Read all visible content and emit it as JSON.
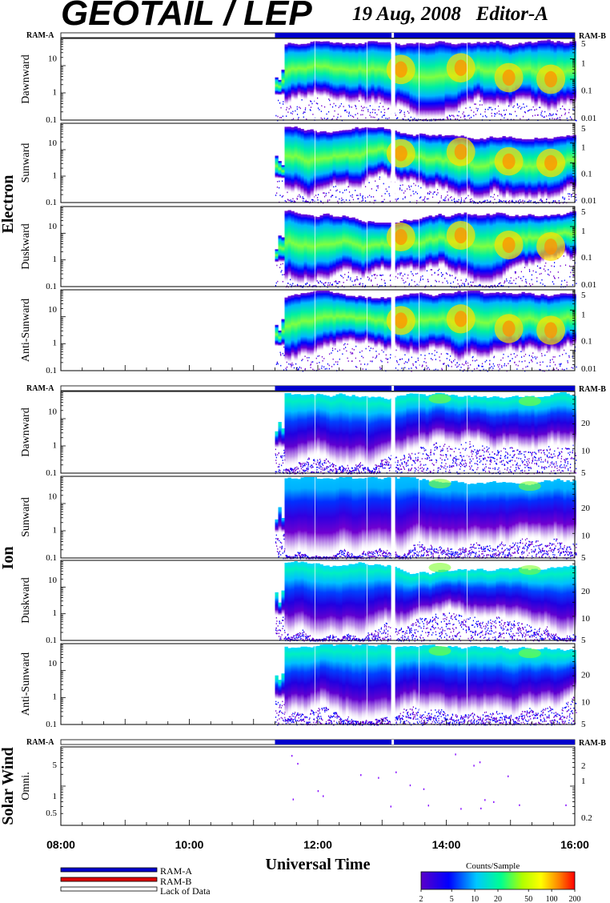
{
  "header": {
    "title": "GEOTAIL / LEP",
    "date": "19 Aug, 2008",
    "editor": "Editor-A"
  },
  "ram": {
    "left": "RAM-A",
    "right": "RAM-B"
  },
  "legend": [
    {
      "label": "RAM-A",
      "color": "#0000cc"
    },
    {
      "label": "RAM-B",
      "color": "#dd0000"
    },
    {
      "label": "Lack of Data",
      "color": "#ffffff"
    }
  ],
  "colorbar": {
    "title": "Counts/Sample",
    "ticks": [
      "2",
      "5",
      "10",
      "20",
      "50",
      "100",
      "200"
    ]
  },
  "chart_data": {
    "type": "heatmap",
    "x_axis": {
      "label": "Universal Time",
      "range": [
        "08:00",
        "16:00"
      ],
      "ticks": [
        "08:00",
        "10:00",
        "12:00",
        "14:00",
        "16:00"
      ]
    },
    "data_start": "11:20",
    "data_gaps": [
      "13:10"
    ],
    "groups": [
      {
        "name": "Electron",
        "panels": [
          {
            "label": "Dawnward",
            "yticks_left": [
              "10",
              "1",
              "0.1"
            ],
            "yticks_right": [
              "5",
              "1",
              "0.1",
              "0.01"
            ]
          },
          {
            "label": "Sunward",
            "yticks_left": [
              "10",
              "1",
              "0.1"
            ],
            "yticks_right": [
              "5",
              "1",
              "0.1",
              "0.01"
            ]
          },
          {
            "label": "Duskward",
            "yticks_left": [
              "10",
              "1",
              "0.1"
            ],
            "yticks_right": [
              "5",
              "1",
              "0.1",
              "0.01"
            ]
          },
          {
            "label": "Anti-Sunward",
            "yticks_left": [
              "10",
              "1",
              "0.1"
            ],
            "yticks_right": [
              "5",
              "1",
              "0.1",
              "0.01"
            ]
          }
        ]
      },
      {
        "name": "Ion",
        "panels": [
          {
            "label": "Dawnward",
            "yticks_left": [
              "10",
              "1",
              "0.1"
            ],
            "yticks_right": [
              "20",
              "10",
              "5"
            ]
          },
          {
            "label": "Sunward",
            "yticks_left": [
              "10",
              "1",
              "0.1"
            ],
            "yticks_right": [
              "20",
              "10",
              "5"
            ]
          },
          {
            "label": "Duskward",
            "yticks_left": [
              "10",
              "1",
              "0.1"
            ],
            "yticks_right": [
              "20",
              "10",
              "5"
            ]
          },
          {
            "label": "Anti-Sunward",
            "yticks_left": [
              "10",
              "1",
              "0.1"
            ],
            "yticks_right": [
              "20",
              "10",
              "5"
            ]
          }
        ]
      },
      {
        "name": "Solar Wind",
        "panels": [
          {
            "label": "Omni.",
            "yticks_left": [
              "5",
              "1",
              "0.5"
            ],
            "yticks_right": [
              "2",
              "1",
              "0.2"
            ]
          }
        ]
      }
    ]
  }
}
